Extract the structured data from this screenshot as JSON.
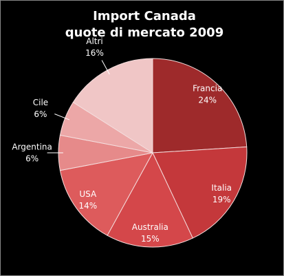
{
  "chart_data": {
    "type": "pie",
    "title": [
      "Import Canada",
      "quote di mercato 2009"
    ],
    "categories": [
      "Francia",
      "Italia",
      "Australia",
      "USA",
      "Argentina",
      "Cile",
      "Altri"
    ],
    "values": [
      24,
      19,
      15,
      14,
      6,
      6,
      16
    ],
    "value_labels": [
      "24%",
      "19%",
      "15%",
      "14%",
      "6%",
      "6%",
      "16%"
    ],
    "colors": [
      "#9e2a2b",
      "#c4383b",
      "#d4474a",
      "#dd5b5c",
      "#e68a8a",
      "#eca7a7",
      "#f0c6c6"
    ]
  }
}
